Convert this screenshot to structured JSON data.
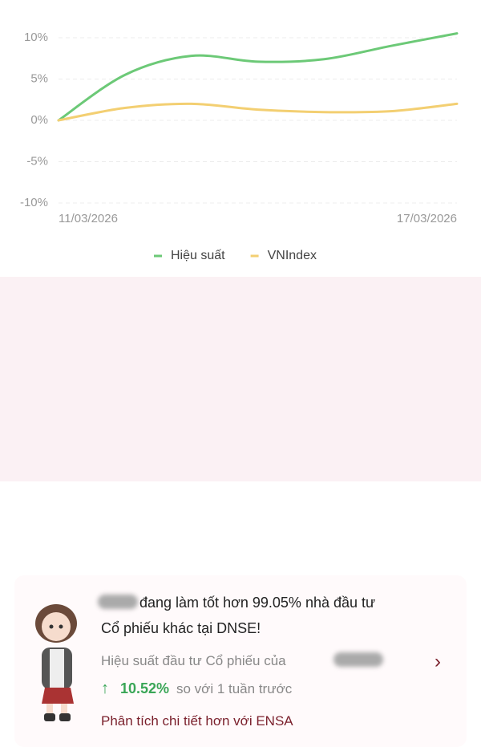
{
  "chart_data": {
    "type": "line",
    "categories": [
      "11/03/2026",
      null,
      null,
      null,
      null,
      null,
      "17/03/2026"
    ],
    "series": [
      {
        "name": "Hiệu suất",
        "color": "#6cc977",
        "values": [
          0,
          5.5,
          7.8,
          7.1,
          7.4,
          9.0,
          10.52
        ]
      },
      {
        "name": "VNIndex",
        "color": "#f3cf72",
        "values": [
          0,
          1.5,
          2.0,
          1.3,
          1.0,
          1.1,
          2.0
        ]
      }
    ],
    "ylim": [
      -10,
      10
    ],
    "yticks": [
      {
        "value": -10,
        "label": "-10%"
      },
      {
        "value": -5,
        "label": "-5%"
      },
      {
        "value": 0,
        "label": "0%"
      },
      {
        "value": 5,
        "label": "5%"
      },
      {
        "value": 10,
        "label": "10%"
      }
    ],
    "grid": true,
    "legend": "bottom"
  },
  "card": {
    "headline_1": "đang làm tốt hơn 99.05% nhà đầu tư",
    "headline_2": "Cổ phiếu khác tại DNSE!",
    "subtitle": "Hiệu suất đầu tư Cổ phiếu của",
    "change": "10.52%",
    "change_note": "so với 1 tuần trước",
    "link": "Phân tích chi tiết hơn với ENSA"
  }
}
